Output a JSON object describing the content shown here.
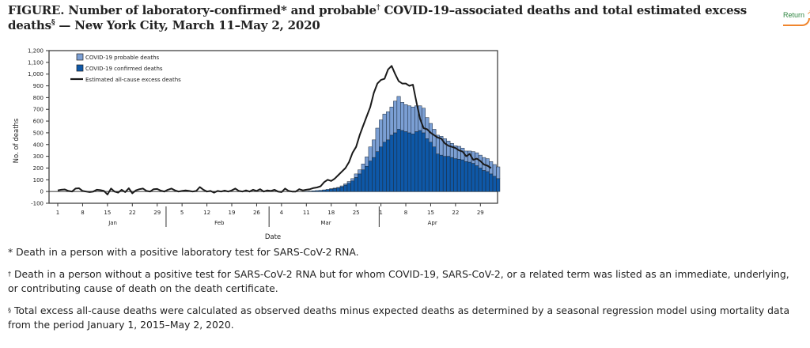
{
  "title": {
    "figure_label": "FIGURE",
    "text_part1": ". Number of laboratory-confirmed",
    "mark1": "*",
    "text_part2": " and probable",
    "mark2": "†",
    "text_part3": " COVID-19–associated deaths and total estimated excess deaths",
    "mark3": "§",
    "text_part4": " — New York City, March 11–May 2, 2020"
  },
  "return_button": {
    "label": "Return"
  },
  "footnotes": [
    {
      "mark": "*",
      "text": " Death in a person with a positive laboratory test for SARS-CoV-2 RNA."
    },
    {
      "mark": "†",
      "text": " Death in a person without a positive test for SARS-CoV-2 RNA but for whom COVID-19, SARS-CoV-2, or a related term was listed as an immediate, underlying, or contributing cause of death on the death certificate."
    },
    {
      "mark": "§",
      "text": " Total excess all-cause deaths were calculated as observed deaths minus expected deaths as determined by a seasonal regression model using mortality data from the period January 1, 2015–May 2, 2020."
    }
  ],
  "colors": {
    "probable": "#7b9fd4",
    "confirmed": "#0e58a8",
    "bar_outline": "#1c2a3a",
    "excess_line": "#1a1a1a",
    "axis": "#333333",
    "return_text": "#2e8540",
    "return_arrow": "#f0852d"
  },
  "chart_data": {
    "type": "bar",
    "stacked": true,
    "title": "",
    "xlabel": "Date",
    "ylabel": "No. of deaths",
    "ylim": [
      -100,
      1200
    ],
    "yticks": [
      -100,
      0,
      100,
      200,
      300,
      400,
      500,
      600,
      700,
      800,
      900,
      1000,
      1100,
      1200
    ],
    "ytick_labels": [
      "-100",
      "0",
      "100",
      "200",
      "300",
      "400",
      "500",
      "600",
      "700",
      "800",
      "900",
      "1,000",
      "1,100",
      "1,200"
    ],
    "x_start": "2020-01-01",
    "x_end": "2020-05-02",
    "xticks": [
      {
        "day": 0,
        "label": "1"
      },
      {
        "day": 7,
        "label": "8"
      },
      {
        "day": 14,
        "label": "15"
      },
      {
        "day": 21,
        "label": "22"
      },
      {
        "day": 28,
        "label": "29"
      },
      {
        "day": 35,
        "label": "5"
      },
      {
        "day": 42,
        "label": "12"
      },
      {
        "day": 49,
        "label": "19"
      },
      {
        "day": 56,
        "label": "26"
      },
      {
        "day": 63,
        "label": "4"
      },
      {
        "day": 70,
        "label": "11"
      },
      {
        "day": 77,
        "label": "18"
      },
      {
        "day": 84,
        "label": "25"
      },
      {
        "day": 91,
        "label": "1"
      },
      {
        "day": 98,
        "label": "8"
      },
      {
        "day": 105,
        "label": "15"
      },
      {
        "day": 112,
        "label": "22"
      },
      {
        "day": 119,
        "label": "29"
      }
    ],
    "months": [
      {
        "label": "Jan",
        "start_day": 0,
        "end_day": 31
      },
      {
        "label": "Feb",
        "start_day": 31,
        "end_day": 60
      },
      {
        "label": "Mar",
        "start_day": 60,
        "end_day": 91
      },
      {
        "label": "Apr",
        "start_day": 91,
        "end_day": 121
      }
    ],
    "legend": {
      "placement": "top-left",
      "entries": [
        {
          "label": "COVID-19 probable deaths",
          "kind": "box",
          "color_key": "probable"
        },
        {
          "label": "COVID-19 confirmed deaths",
          "kind": "box",
          "color_key": "confirmed"
        },
        {
          "label": "Estimated all-cause excess deaths",
          "kind": "line",
          "color_key": "excess_line"
        }
      ]
    },
    "bars_start_day": 70,
    "series": [
      {
        "name": "COVID-19 confirmed deaths",
        "values": [
          2,
          4,
          6,
          8,
          10,
          14,
          18,
          22,
          26,
          30,
          40,
          55,
          70,
          90,
          120,
          150,
          185,
          215,
          260,
          290,
          340,
          380,
          420,
          440,
          480,
          500,
          530,
          520,
          510,
          500,
          490,
          510,
          520,
          500,
          450,
          420,
          380,
          320,
          310,
          300,
          300,
          290,
          280,
          275,
          270,
          255,
          250,
          240,
          220,
          200,
          180,
          170,
          150,
          130,
          110
        ]
      },
      {
        "name": "COVID-19 probable deaths",
        "values": [
          0,
          0,
          0,
          0,
          0,
          0,
          0,
          2,
          3,
          5,
          8,
          10,
          15,
          20,
          30,
          35,
          50,
          80,
          120,
          150,
          200,
          230,
          240,
          240,
          240,
          270,
          280,
          240,
          230,
          230,
          230,
          220,
          210,
          210,
          180,
          160,
          150,
          160,
          160,
          150,
          130,
          120,
          110,
          110,
          100,
          90,
          95,
          100,
          110,
          110,
          110,
          110,
          105,
          100,
          100
        ]
      }
    ],
    "excess_line": {
      "name": "Estimated all-cause excess deaths",
      "values": [
        10,
        15,
        18,
        5,
        0,
        25,
        28,
        5,
        0,
        -5,
        0,
        15,
        12,
        5,
        -25,
        25,
        0,
        -10,
        15,
        -5,
        28,
        -15,
        10,
        20,
        25,
        5,
        0,
        20,
        22,
        8,
        0,
        15,
        25,
        10,
        0,
        5,
        10,
        5,
        0,
        5,
        38,
        15,
        0,
        5,
        -10,
        5,
        0,
        8,
        0,
        10,
        25,
        5,
        0,
        10,
        0,
        15,
        5,
        20,
        0,
        10,
        5,
        15,
        0,
        -5,
        25,
        5,
        0,
        0,
        20,
        10,
        15,
        20,
        30,
        35,
        45,
        80,
        100,
        90,
        110,
        140,
        170,
        200,
        250,
        330,
        380,
        480,
        560,
        640,
        720,
        840,
        920,
        950,
        960,
        1040,
        1070,
        1000,
        940,
        920,
        920,
        900,
        910,
        760,
        620,
        540,
        530,
        500,
        480,
        460,
        450,
        410,
        390,
        380,
        370,
        350,
        340,
        300,
        320,
        270,
        280,
        260,
        230,
        220,
        200
      ]
    }
  }
}
